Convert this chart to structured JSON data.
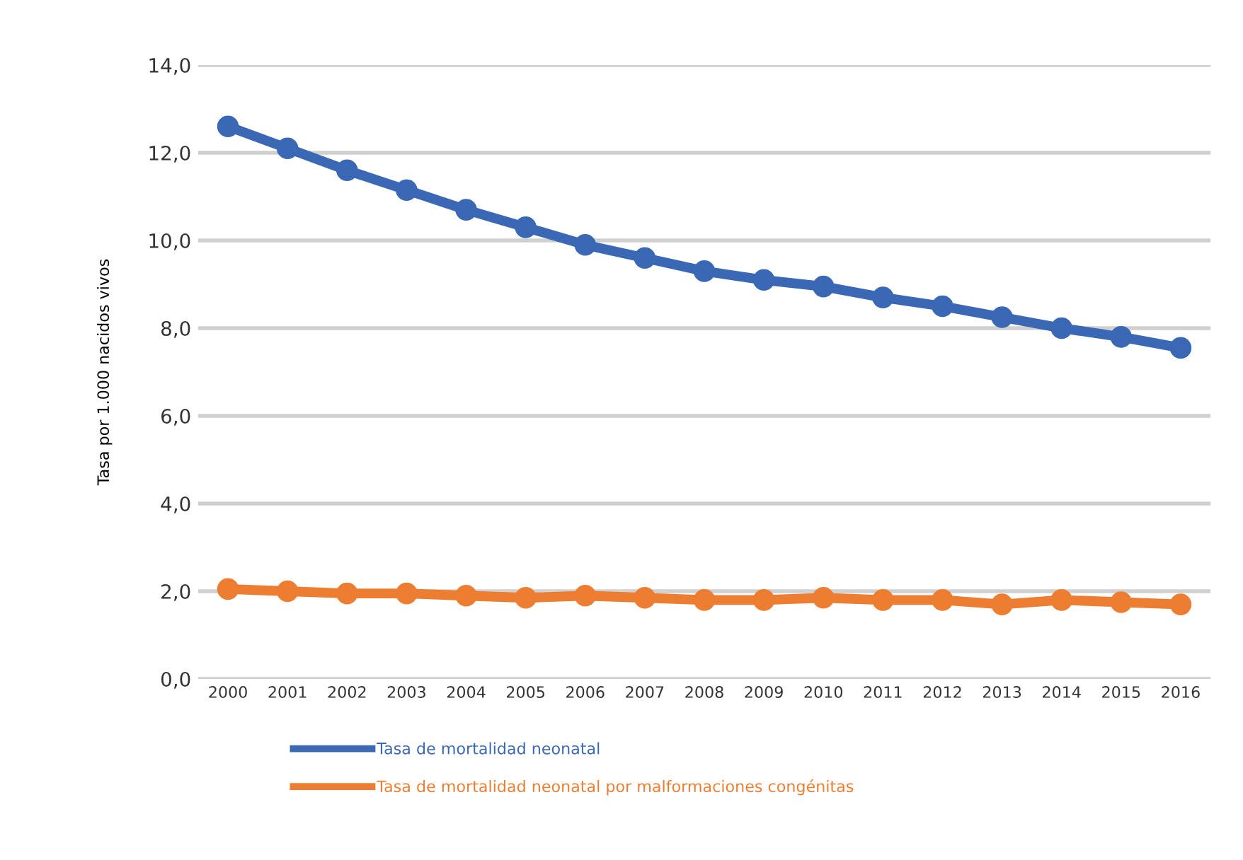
{
  "chart_data": {
    "type": "line",
    "ylabel": "Tasa por 1.000 nacidos vivos",
    "categories": [
      "2000",
      "2001",
      "2002",
      "2003",
      "2004",
      "2005",
      "2006",
      "2007",
      "2008",
      "2009",
      "2010",
      "2011",
      "2012",
      "2013",
      "2014",
      "2015",
      "2016"
    ],
    "series": [
      {
        "name": "Tasa de mortalidad neonatal",
        "color": "#3a68b4",
        "values": [
          12.6,
          12.1,
          11.6,
          11.15,
          10.7,
          10.3,
          9.9,
          9.6,
          9.3,
          9.1,
          8.95,
          8.7,
          8.5,
          8.25,
          8.0,
          7.8,
          7.55
        ]
      },
      {
        "name": "Tasa de mortalidad neonatal por malformaciones congénitas",
        "color": "#ed7d31",
        "values": [
          2.05,
          2.0,
          1.95,
          1.95,
          1.9,
          1.85,
          1.9,
          1.85,
          1.8,
          1.8,
          1.85,
          1.8,
          1.8,
          1.7,
          1.8,
          1.75,
          1.7
        ]
      }
    ],
    "ylim": [
      0,
      14
    ],
    "yticks": [
      {
        "value": 0,
        "label": "0,0"
      },
      {
        "value": 2,
        "label": "2,0"
      },
      {
        "value": 4,
        "label": "4,0"
      },
      {
        "value": 6,
        "label": "6,0"
      },
      {
        "value": 8,
        "label": "8,0"
      },
      {
        "value": 10,
        "label": "10,0"
      },
      {
        "value": 12,
        "label": "12,0"
      },
      {
        "value": 14,
        "label": "14,0"
      }
    ],
    "grid": "y",
    "legend": "bottom left",
    "marker": "circle",
    "line_style": "solid"
  }
}
